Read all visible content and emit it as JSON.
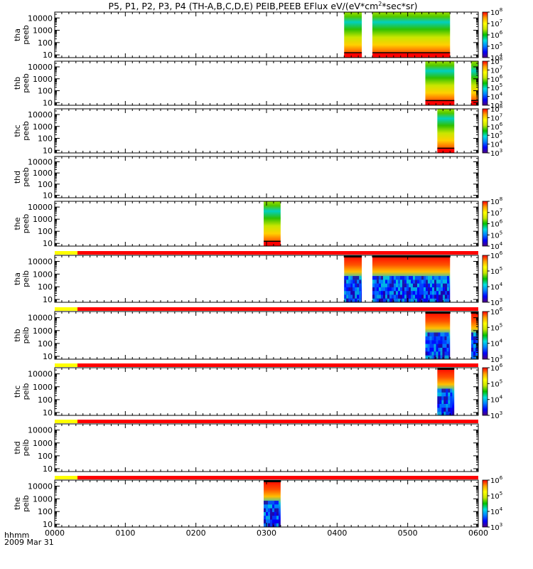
{
  "title": {
    "main": "P5, P1, P2, P3, P4 (TH-A,B,C,D,E) PEIB,PEEB EFlux eV/(eV*cm",
    "sup": "2",
    "tail": "*sec*sr)"
  },
  "footer": {
    "time_label": "hhmm",
    "date_label": "2009 Mar 31"
  },
  "chart_data": {
    "type": "heatmap",
    "x_axis": {
      "range": [
        "0000",
        "0600"
      ],
      "tick_labels": [
        "0000",
        "0100",
        "0200",
        "0300",
        "0400",
        "0500",
        "0600"
      ]
    },
    "y_axis": {
      "scale": "log",
      "range_eV": [
        6,
        30000
      ],
      "tick_labels": [
        "10",
        "100",
        "1000",
        "10000"
      ]
    },
    "colormap": [
      "#50007f",
      "#0000ff",
      "#0080ff",
      "#00e0e0",
      "#00c000",
      "#c8e600",
      "#ffff00",
      "#ffa000",
      "#ff0000"
    ],
    "panels": [
      {
        "name": "peeb-a",
        "ylabel": [
          "tha",
          "peeb"
        ],
        "status_bar": false,
        "colorbar": {
          "min_exp": 4,
          "max_exp": 8,
          "labels": [
            "10",
            "10",
            "10",
            "10",
            "10"
          ],
          "exps": [
            "4",
            "5",
            "6",
            "7",
            "8"
          ]
        },
        "blocks": [
          {
            "t_start": "0410",
            "t_end": "0435",
            "style": "electron"
          },
          {
            "t_start": "0450",
            "t_end": "0560",
            "style": "electron"
          }
        ]
      },
      {
        "name": "peeb-b",
        "ylabel": [
          "thb",
          "peeb"
        ],
        "status_bar": false,
        "colorbar": {
          "min_exp": 3,
          "max_exp": 8,
          "labels": [
            "10",
            "10",
            "10",
            "10",
            "10",
            "10"
          ],
          "exps": [
            "3",
            "4",
            "5",
            "6",
            "7",
            "8"
          ]
        },
        "blocks": [
          {
            "t_start": "0525",
            "t_end": "0566",
            "style": "electron"
          },
          {
            "t_start": "0590",
            "t_end": "0600",
            "style": "electron"
          }
        ]
      },
      {
        "name": "peeb-c",
        "ylabel": [
          "thc",
          "peeb"
        ],
        "status_bar": false,
        "colorbar": {
          "min_exp": 3,
          "max_exp": 8,
          "labels": [
            "10",
            "10",
            "10",
            "10",
            "10",
            "10"
          ],
          "exps": [
            "3",
            "4",
            "5",
            "6",
            "7",
            "8"
          ]
        },
        "blocks": [
          {
            "t_start": "0542",
            "t_end": "0566",
            "style": "electron"
          }
        ]
      },
      {
        "name": "peeb-d",
        "ylabel": [
          "thd",
          "peeb"
        ],
        "status_bar": false,
        "colorbar": null,
        "blocks": []
      },
      {
        "name": "peeb-e",
        "ylabel": [
          "the",
          "peeb"
        ],
        "status_bar": false,
        "colorbar": {
          "min_exp": 4,
          "max_exp": 8,
          "labels": [
            "10",
            "10",
            "10",
            "10",
            "10"
          ],
          "exps": [
            "4",
            "5",
            "6",
            "7",
            "8"
          ]
        },
        "blocks": [
          {
            "t_start": "0296",
            "t_end": "0320",
            "style": "electron"
          }
        ]
      },
      {
        "name": "peib-a",
        "ylabel": [
          "tha",
          "peib"
        ],
        "status_bar": true,
        "colorbar": {
          "min_exp": 3,
          "max_exp": 6,
          "labels": [
            "10",
            "10",
            "10",
            "10"
          ],
          "exps": [
            "3",
            "4",
            "5",
            "6"
          ]
        },
        "blocks": [
          {
            "t_start": "0410",
            "t_end": "0435",
            "style": "ion"
          },
          {
            "t_start": "0450",
            "t_end": "0560",
            "style": "ion"
          }
        ]
      },
      {
        "name": "peib-b",
        "ylabel": [
          "thb",
          "peib"
        ],
        "status_bar": true,
        "colorbar": {
          "min_exp": 3,
          "max_exp": 6,
          "labels": [
            "10",
            "10",
            "10",
            "10"
          ],
          "exps": [
            "3",
            "4",
            "5",
            "6"
          ]
        },
        "blocks": [
          {
            "t_start": "0525",
            "t_end": "0560",
            "style": "ion"
          },
          {
            "t_start": "0590",
            "t_end": "0600",
            "style": "ion"
          }
        ]
      },
      {
        "name": "peib-c",
        "ylabel": [
          "thc",
          "peib"
        ],
        "status_bar": true,
        "colorbar": {
          "min_exp": 3,
          "max_exp": 6,
          "labels": [
            "10",
            "10",
            "10",
            "10"
          ],
          "exps": [
            "3",
            "4",
            "5",
            "6"
          ]
        },
        "blocks": [
          {
            "t_start": "0542",
            "t_end": "0566",
            "style": "ion"
          }
        ]
      },
      {
        "name": "peib-d",
        "ylabel": [
          "thd",
          "peib"
        ],
        "status_bar": true,
        "colorbar": null,
        "blocks": []
      },
      {
        "name": "peib-e",
        "ylabel": [
          "the",
          "peib"
        ],
        "status_bar": true,
        "colorbar": {
          "min_exp": 3,
          "max_exp": 6,
          "labels": [
            "10",
            "10",
            "10",
            "10"
          ],
          "exps": [
            "3",
            "4",
            "5",
            "6"
          ]
        },
        "blocks": [
          {
            "t_start": "0296",
            "t_end": "0320",
            "style": "ion"
          }
        ]
      }
    ]
  }
}
